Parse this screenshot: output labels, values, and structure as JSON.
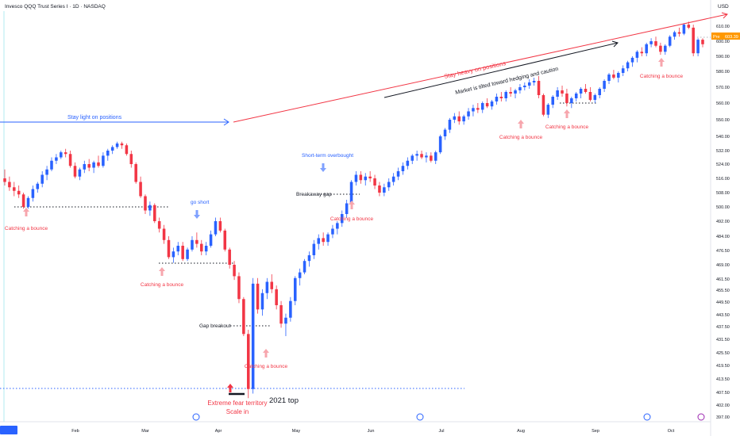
{
  "header": {
    "symbol_line": "Invesco QQQ Trust Series I · 1D · NASDAQ",
    "currency": "USD",
    "last_price": "603.39",
    "pre_label": "Pre"
  },
  "chart_data": {
    "type": "candlestick",
    "title": "Invesco QQQ Trust Series I · 1D · NASDAQ",
    "y_axis": {
      "ticks": [
        "610.00",
        "600.00",
        "590.00",
        "580.00",
        "570.00",
        "560.00",
        "550.00",
        "540.00",
        "532.00",
        "524.00",
        "516.00",
        "508.00",
        "500.00",
        "492.00",
        "484.00",
        "476.50",
        "469.00",
        "461.50",
        "455.50",
        "449.50",
        "443.50",
        "437.50",
        "431.50",
        "425.50",
        "419.50",
        "413.50",
        "407.50",
        "402.00",
        "397.00"
      ]
    },
    "x_axis": {
      "ticks": [
        "02 Jan '25",
        "Feb",
        "Mar",
        "Apr",
        "May",
        "Jun",
        "Jul",
        "Aug",
        "Sep",
        "Oct"
      ]
    },
    "candles": [
      [
        516,
        521,
        512,
        514
      ],
      [
        514,
        517,
        509,
        511
      ],
      [
        511,
        514,
        506,
        509
      ],
      [
        509,
        512,
        505,
        507
      ],
      [
        507,
        508,
        499,
        500
      ],
      [
        500,
        506,
        499,
        505
      ],
      [
        505,
        512,
        503,
        510
      ],
      [
        510,
        514,
        508,
        513
      ],
      [
        513,
        520,
        511,
        518
      ],
      [
        518,
        523,
        515,
        521
      ],
      [
        521,
        528,
        520,
        526
      ],
      [
        526,
        530,
        524,
        528
      ],
      [
        528,
        532,
        527,
        531
      ],
      [
        531,
        533,
        528,
        530
      ],
      [
        530,
        532,
        522,
        523
      ],
      [
        523,
        525,
        516,
        517
      ],
      [
        517,
        522,
        515,
        521
      ],
      [
        521,
        526,
        519,
        524
      ],
      [
        524,
        527,
        520,
        522
      ],
      [
        522,
        526,
        519,
        525
      ],
      [
        525,
        529,
        522,
        523
      ],
      [
        523,
        531,
        522,
        529
      ],
      [
        529,
        533,
        526,
        532
      ],
      [
        532,
        535,
        530,
        534
      ],
      [
        534,
        537,
        533,
        536
      ],
      [
        536,
        537,
        533,
        535
      ],
      [
        535,
        536,
        529,
        530
      ],
      [
        530,
        532,
        522,
        524
      ],
      [
        524,
        525,
        513,
        514
      ],
      [
        514,
        517,
        505,
        506
      ],
      [
        506,
        507,
        496,
        498
      ],
      [
        498,
        503,
        495,
        501
      ],
      [
        501,
        502,
        491,
        492
      ],
      [
        492,
        494,
        486,
        488
      ],
      [
        488,
        490,
        480,
        482
      ],
      [
        482,
        484,
        472,
        473
      ],
      [
        473,
        478,
        470,
        476
      ],
      [
        476,
        481,
        474,
        479
      ],
      [
        479,
        481,
        471,
        472
      ],
      [
        472,
        478,
        471,
        477
      ],
      [
        477,
        484,
        476,
        482
      ],
      [
        482,
        486,
        478,
        480
      ],
      [
        480,
        482,
        474,
        476
      ],
      [
        476,
        481,
        474,
        479
      ],
      [
        479,
        487,
        478,
        485
      ],
      [
        485,
        494,
        484,
        492
      ],
      [
        492,
        494,
        486,
        487
      ],
      [
        487,
        488,
        476,
        477
      ],
      [
        477,
        478,
        467,
        469
      ],
      [
        469,
        471,
        461,
        463
      ],
      [
        463,
        465,
        449,
        451
      ],
      [
        451,
        452,
        433,
        434
      ],
      [
        434,
        436,
        405,
        409
      ],
      [
        409,
        462,
        407,
        459
      ],
      [
        459,
        462,
        444,
        446
      ],
      [
        446,
        456,
        443,
        454
      ],
      [
        454,
        462,
        451,
        460
      ],
      [
        460,
        464,
        454,
        456
      ],
      [
        456,
        458,
        446,
        448
      ],
      [
        448,
        450,
        437,
        439
      ],
      [
        439,
        444,
        433,
        442
      ],
      [
        442,
        452,
        440,
        450
      ],
      [
        450,
        463,
        448,
        462
      ],
      [
        462,
        467,
        458,
        465
      ],
      [
        465,
        472,
        464,
        471
      ],
      [
        471,
        476,
        468,
        474
      ],
      [
        474,
        482,
        472,
        480
      ],
      [
        480,
        485,
        477,
        483
      ],
      [
        483,
        486,
        479,
        481
      ],
      [
        481,
        486,
        479,
        485
      ],
      [
        485,
        490,
        483,
        488
      ],
      [
        488,
        492,
        485,
        491
      ],
      [
        491,
        498,
        489,
        496
      ],
      [
        496,
        504,
        494,
        502
      ],
      [
        502,
        515,
        501,
        514
      ],
      [
        514,
        520,
        512,
        518
      ],
      [
        518,
        520,
        513,
        515
      ],
      [
        515,
        519,
        512,
        517
      ],
      [
        517,
        520,
        514,
        516
      ],
      [
        516,
        518,
        510,
        512
      ],
      [
        512,
        514,
        506,
        508
      ],
      [
        508,
        513,
        506,
        511
      ],
      [
        511,
        516,
        509,
        514
      ],
      [
        514,
        519,
        512,
        517
      ],
      [
        517,
        522,
        515,
        520
      ],
      [
        520,
        525,
        518,
        523
      ],
      [
        523,
        528,
        521,
        526
      ],
      [
        526,
        530,
        524,
        529
      ],
      [
        529,
        532,
        526,
        530
      ],
      [
        530,
        532,
        527,
        528
      ],
      [
        528,
        531,
        525,
        529
      ],
      [
        529,
        531,
        525,
        526
      ],
      [
        526,
        532,
        524,
        531
      ],
      [
        531,
        541,
        530,
        540
      ],
      [
        540,
        545,
        538,
        544
      ],
      [
        544,
        551,
        542,
        550
      ],
      [
        550,
        554,
        548,
        552
      ],
      [
        552,
        555,
        547,
        549
      ],
      [
        549,
        553,
        547,
        552
      ],
      [
        552,
        557,
        550,
        555
      ],
      [
        555,
        559,
        552,
        557
      ],
      [
        557,
        560,
        554,
        556
      ],
      [
        556,
        561,
        554,
        560
      ],
      [
        560,
        563,
        557,
        558
      ],
      [
        558,
        562,
        556,
        561
      ],
      [
        561,
        566,
        559,
        564
      ],
      [
        564,
        567,
        561,
        563
      ],
      [
        563,
        568,
        561,
        567
      ],
      [
        567,
        570,
        564,
        566
      ],
      [
        566,
        569,
        563,
        568
      ],
      [
        568,
        572,
        566,
        570
      ],
      [
        570,
        573,
        568,
        571
      ],
      [
        571,
        575,
        569,
        573
      ],
      [
        573,
        576,
        571,
        574
      ],
      [
        574,
        577,
        563,
        565
      ],
      [
        565,
        566,
        552,
        553
      ],
      [
        553,
        560,
        551,
        559
      ],
      [
        559,
        565,
        557,
        564
      ],
      [
        564,
        570,
        562,
        568
      ],
      [
        568,
        571,
        564,
        566
      ],
      [
        566,
        569,
        558,
        560
      ],
      [
        560,
        564,
        557,
        563
      ],
      [
        563,
        567,
        561,
        566
      ],
      [
        566,
        570,
        563,
        569
      ],
      [
        569,
        572,
        566,
        567
      ],
      [
        567,
        570,
        561,
        562
      ],
      [
        562,
        566,
        560,
        565
      ],
      [
        565,
        570,
        563,
        569
      ],
      [
        569,
        575,
        567,
        574
      ],
      [
        574,
        579,
        572,
        578
      ],
      [
        578,
        581,
        575,
        576
      ],
      [
        576,
        580,
        573,
        579
      ],
      [
        579,
        584,
        577,
        582
      ],
      [
        582,
        587,
        580,
        586
      ],
      [
        586,
        590,
        583,
        589
      ],
      [
        589,
        594,
        586,
        593
      ],
      [
        593,
        596,
        590,
        592
      ],
      [
        592,
        599,
        590,
        598
      ],
      [
        598,
        602,
        596,
        600
      ],
      [
        600,
        603,
        596,
        597
      ],
      [
        597,
        599,
        591,
        593
      ],
      [
        593,
        598,
        591,
        597
      ],
      [
        597,
        604,
        596,
        603
      ],
      [
        603,
        607,
        601,
        606
      ],
      [
        606,
        609,
        603,
        605
      ],
      [
        605,
        612,
        604,
        611
      ],
      [
        611,
        613,
        608,
        609
      ],
      [
        609,
        611,
        590,
        592
      ],
      [
        592,
        602,
        590,
        601
      ],
      [
        601,
        602,
        596,
        598
      ]
    ],
    "annotations": {
      "stay_light": "Stay light on positions",
      "stay_heavy": "Stay heavy on positions",
      "market_tilted": "Market is tilted toward hedging and caution",
      "short_term_overbought": "Short-term overbought",
      "breakaway_gap": "Breakaway gap",
      "go_short": "go short",
      "gap_breakout": "Gap breakout",
      "extreme_fear": "Extreme fear territory",
      "scale_in": "Scale in",
      "top_2021": "2021 top",
      "catching_bounce": "Catching a bounce"
    },
    "colors": {
      "up": "#2962ff",
      "down": "#f23645",
      "blue_line": "#2962ff",
      "red_line": "#f23645",
      "price_tag": "#ff9800"
    }
  }
}
